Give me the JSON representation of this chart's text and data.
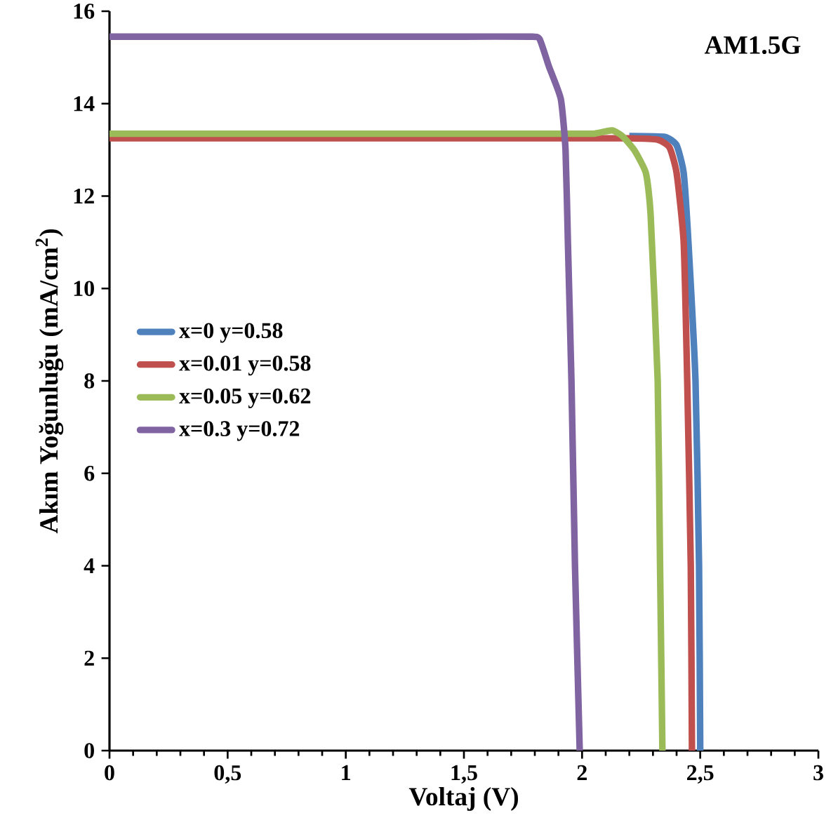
{
  "chart_data": {
    "type": "line",
    "xlabel": "Voltaj (V)",
    "ylabel": "Akım Yoğunluğu (mA/cm$^{2}$)",
    "annotations": [
      "AM1.5G"
    ],
    "legend": "left",
    "grid": false,
    "marker": "none",
    "line_style": "solid",
    "xlim": [
      0,
      3
    ],
    "ylim": [
      0,
      16
    ],
    "xticks": [
      0,
      {
        "value": 0.5,
        "label": "0,5"
      },
      1,
      {
        "value": 1.5,
        "label": "1,5"
      },
      2,
      {
        "value": 2.5,
        "label": "2,5"
      },
      3
    ],
    "yticks": [
      0,
      2,
      4,
      6,
      8,
      10,
      12,
      14,
      16
    ],
    "series": [
      {
        "name": "x=0   y=0.58",
        "color": "#4f81bd",
        "x": [
          2.2,
          2.35,
          2.4,
          2.43,
          2.45,
          2.48,
          2.495,
          2.5
        ],
        "values": [
          13.3,
          13.28,
          13.1,
          12.5,
          11,
          8,
          4,
          0
        ]
      },
      {
        "name": "x=0.01 y=0.58",
        "color": "#c0504d",
        "x": [
          0,
          0.5,
          1,
          1.5,
          2,
          2.2,
          2.32,
          2.37,
          2.4,
          2.43,
          2.445,
          2.46,
          2.465
        ],
        "values": [
          13.25,
          13.25,
          13.25,
          13.25,
          13.25,
          13.25,
          13.22,
          13.05,
          12.5,
          11,
          8,
          4,
          0
        ]
      },
      {
        "name": "x=0.05  y=0.62",
        "color": "#9bbb59",
        "x": [
          0,
          0.5,
          1,
          1.5,
          2,
          2.05,
          2.1,
          2.13,
          2.17,
          2.22,
          2.27,
          2.29,
          2.32,
          2.33,
          2.34
        ],
        "values": [
          13.35,
          13.35,
          13.35,
          13.35,
          13.35,
          13.35,
          13.4,
          13.42,
          13.3,
          13.0,
          12.5,
          11.6,
          8,
          4,
          0
        ]
      },
      {
        "name": "x=0.3 y=0.72",
        "color": "#8064a2",
        "x": [
          0,
          0.5,
          1,
          1.5,
          1.78,
          1.82,
          1.86,
          1.91,
          1.93,
          1.94,
          1.955,
          1.97,
          1.99
        ],
        "values": [
          15.45,
          15.45,
          15.45,
          15.45,
          15.45,
          15.4,
          14.8,
          14.1,
          13,
          11,
          8,
          4,
          0
        ]
      }
    ]
  }
}
